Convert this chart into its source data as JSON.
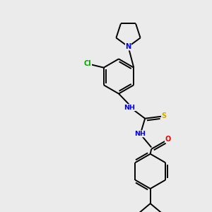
{
  "background_color": "#ebebeb",
  "atom_colors": {
    "N": "#0000EE",
    "O": "#EE0000",
    "S": "#CCAA00",
    "Cl": "#00AA00",
    "C": "#000000",
    "H": "#0000EE"
  },
  "lw": 1.4
}
